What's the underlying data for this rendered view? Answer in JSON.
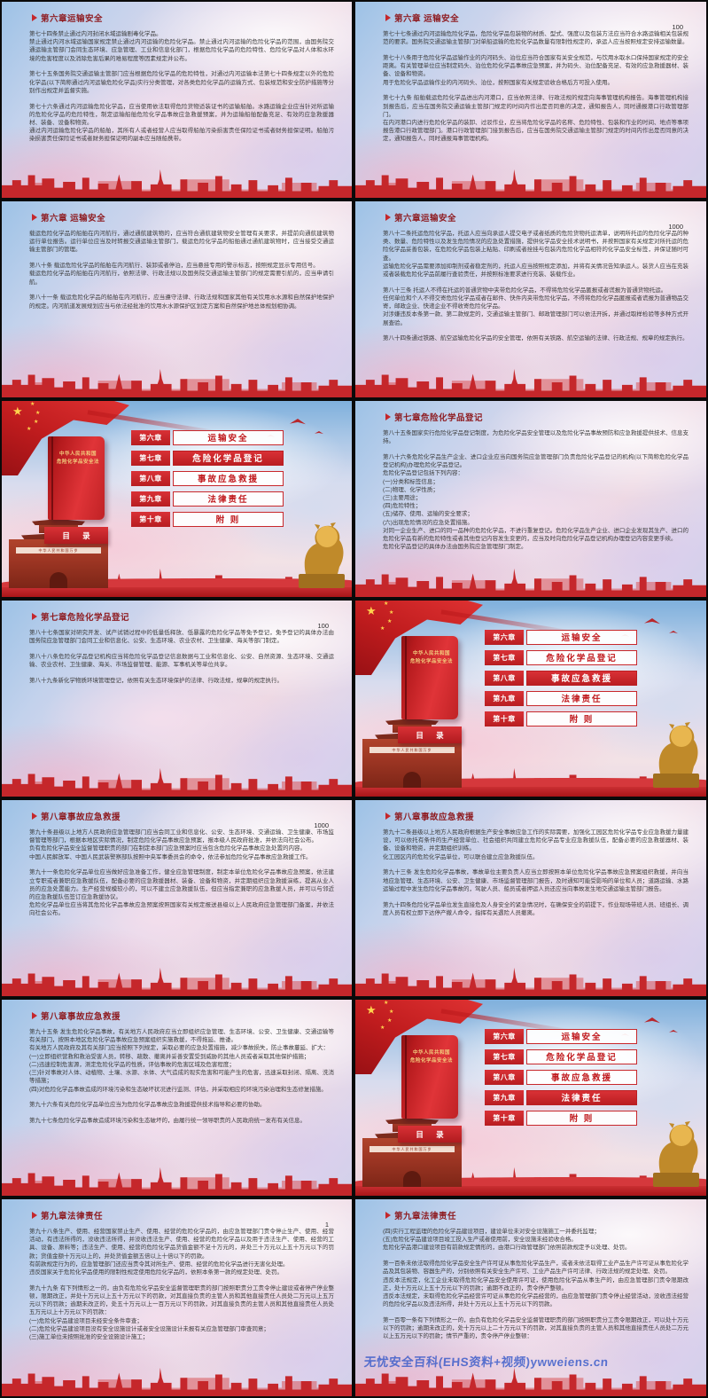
{
  "colors": {
    "accent_red": "#c5272b",
    "title_red": "#8e1a1f",
    "toc_red": "#d02a2e",
    "gold": "#f3cf7e",
    "watermark_blue": "#2f55c8"
  },
  "toc": {
    "book_title_lines": [
      "中华人民共和国",
      "危险化学品安全法"
    ],
    "contents_label": "目 录",
    "plaque_text": "中华人民共和国万岁",
    "rows": [
      {
        "chapter": "第六章",
        "title": "运输安全"
      },
      {
        "chapter": "第七章",
        "title": "危险化学品登记"
      },
      {
        "chapter": "第八章",
        "title": "事故应急救援"
      },
      {
        "chapter": "第九章",
        "title": "法律责任"
      },
      {
        "chapter": "第十章",
        "title": "附  则"
      }
    ]
  },
  "slides": [
    {
      "type": "content",
      "title": "第六章运输安全",
      "blocks": [
        [
          "第七十四条禁止通过内河封闭水域运输剧毒化学品。",
          "禁止通过内河水域运输国家规定禁止通过内河运输的危险化学品。禁止通过内河运输的危险化学品的范围，由国务院交通运输主管部门会同生态环境、应急管理、工业和信息化部门，根据危险化学品的危险特性、危险化学品对人体和水环境的危害程度以及消除危害后果的难易程度等因素规定并公布。"
        ],
        [
          "第七十五条国务院交通运输主管部门应当根据危险化学品的危险特性，对通过内河运输本法第七十四条规定以外的危险化学品(以下简称通过内河运输危险化学品)实行分类管理，对各类危险化学品的运输方式、包装规范和安全防护措施等分别作出规定并监督实施。"
        ],
        [
          "第七十六条通过内河运输危险化学品，应当使用依法取得危险货物适装证书的运输船舶。水路运输企业应当针对所运输的危险化学品的危险特性，制定运输船舶危险化学品事故应急救援预案，并为运输船舶配备充足、有效的应急救援器材、装备、设备和物资。",
          "通过内河运输危险化学品的船舶，其所有人或者经营人应当取得船舶污染损害责任保险证书或者财务担保证明。船舶污染损害责任保险证书或者财务担保证明的副本应当随船携带。"
        ]
      ]
    },
    {
      "type": "content",
      "title": "第六章 运输安全",
      "corner": "100",
      "blocks": [
        [
          "第七十七条通过内河运输危险化学品，危险化学品包装物的材质、型式、强度以及包装方法应当符合水路运输相关包装规范的要求。国务院交通运输主管部门对单船运输的危险化学品数量有限制性规定的，承运人应当按照规定安排运输数量。"
        ],
        [
          "第七十八条用于危险化学品运输作业的内河码头、泊位应当符合国家有关安全规范，与饮用水取水口保持国家规定的安全距离。有关管理单位应当制定码头、泊位危险化学品事故应急预案，并为码头、泊位配备充足、有效的应急救援器材、装备、设备和物资。",
          "用于危险化学品运输作业的内河码头、泊位，按照国家有关规定验收合格后方可投入使用。"
        ],
        [
          "第七十九条 船舶载运危险化学品进出内河港口，应当依照法律、行政法规的规定向海事管理机构报告。海事管理机构接到报告后，应当在国务院交通运输主管部门规定的时间内作出是否同意的决定，通知报告人，同时通报港口行政管理部门。",
          "在内河港口内进行危险化学品的装卸、过驳作业，应当将危险化学品的名称、危险特性、包装和作业的时间、地点等事项报告港口行政管理部门。港口行政管理部门接到报告后，应当在国务院交通运输主管部门规定的时间内作出是否同意的决定，通知报告人，同时通报海事管理机构。"
        ]
      ]
    },
    {
      "type": "content",
      "title": "第六章 运输安全",
      "blocks": [
        [
          "载运危险化学品的船舶在内河航行，通过通航建筑物的，应当符合通航建筑物安全管理有关要求，并提前向通航建筑物运行单位报告。运行单位应当及时转报交通运输主管部门，载运危险化学品的船舶通过通航建筑物时，应当接受交通运输主管部门的管理。"
        ],
        [
          "第八十条 载运危险化学品的船舶在内河航行、装卸或者停泊，应当悬挂专用的警示标志，按照规定显示专用信号。",
          "载运危险化学品的船舶在内河航行，依照法律、行政法规以及国务院交通运输主管部门的规定需要引航的，应当申请引航。"
        ],
        [
          "第八十一条 载运危险化学品的船舶在内河航行，应当遵守法律、行政法规和国家其他有关饮用水水源和自然保护地保护的规定。内河航道发展规划应当与依法经批准的饮用水水源保护区划定方案和自然保护地总体规划相协调。"
        ]
      ]
    },
    {
      "type": "content",
      "title": "第六章运输安全",
      "corner": "1000",
      "blocks": [
        [
          "第八十二条托运危险化学品，托运人应当向承运人提交电子或者纸质的危险货物托运清单，说明所托运的危险化学品的种类、数量、危险特性以及发生危险情况的应急处置措施，提供化学品安全技术说明书，并按照国家有关规定对所托运的危险化学品妥善包装，在危险化学品包装上粘贴、印刷或者拴挂与包装内危险化学品相符的化学品安全标签，并保证随时可查。",
          "运输危险化学品需要添加抑制剂或者稳定剂的，托运人应当按照规定添加，并将有关情况告知承运人。装货人应当在充装或者装载危险化学品前履行查验责任，并按照标准要求进行充装、装载作业。"
        ],
        [
          "第八十三条 托运人不得在托运的普通货物中夹带危险化学品，不得将危险化学品匿报或者谎报为普通货物托运。",
          "任何单位和个人不得交寄危险化学品或者在邮件、快件内夹带危险化学品，不得将危险化学品匿报或者谎报为普通物品交寄，邮政企业、快递企业不得收寄危险化学品。",
          "对涉嫌违反本条第一款、第二款规定的，交通运输主管部门、邮政管理部门可以依法开拆，并通过取样检验等多种方式开展查验。"
        ],
        [
          "第八十四条通过铁路、航空运输危险化学品的安全管理，依照有关铁路、航空运输的法律、行政法规、规章的规定执行。"
        ]
      ]
    },
    {
      "type": "toc",
      "highlighted": 1
    },
    {
      "type": "content",
      "title": "第七章危险化学品登记",
      "blocks": [
        [
          "第八十五条国家实行危险化学品登记制度，为危险化学品安全管理以及危险化学品事故预防和应急救援提供技术、信息支持。"
        ],
        [
          "第八十六条危险化学品生产企业、进口企业应当向国务院应急管理部门负责危险化学品登记的机构(以下简称危险化学品登记机构)办理危险化学品登记。",
          "危险化学品登记包括下列内容：",
          "(一)分类和标签信息；",
          "(二)物理、化学性质；",
          "(三)主要用途；",
          "(四)危险特性；",
          "(五)储存、使用、运输的安全要求；",
          "(六)出现危险情况的应急处置措施。",
          "对同一企业生产、进口的同一品种的危险化学品，不进行重复登记。危险化学品生产企业、进口企业发现其生产、进口的危险化学品有新的危险特性或者其他登记内容发生变更的，应当及时向危险化学品登记机构办理登记内容变更手续。",
          "危险化学品登记的具体办法由国务院应急管理部门制定。"
        ]
      ]
    },
    {
      "type": "content",
      "title": "第七章危险化学品登记",
      "corner": "100",
      "blocks": [
        [
          "第八十七条国家对研究开发、试产试销过程中的低量低释放、低暴露的危险化学品等免予登记，免予登记的具体办法由国务院应急管理部门会同工业和信息化、公安、生态环境、农业农村、卫生健康、海关等部门制定。"
        ],
        [
          "第八十八条危险化学品登记机构应当将危险化学品登记信息数据与工业和信息化、公安、自然资源、生态环境、交通运输、农业农村、卫生健康、海关、市场监督管理、能源、军事机关等单位共享。"
        ],
        [
          "第八十九条新化学物质环境管理登记，依照有关生态环境保护的法律、行政法规，规章的规定执行。"
        ]
      ]
    },
    {
      "type": "toc",
      "highlighted": 2
    },
    {
      "type": "content",
      "title": "第八章事故应急救援",
      "corner": "1000",
      "blocks": [
        [
          "第九十条县级以上地方人民政府应急管理部门应当会同工业和信息化、公安、生态环境、交通运输、卫生健康、市场监督管理等部门，根据本地区实际情况，制定危险化学品事故应急预案，报本级人民政府批准，并依法向社会公布。",
          "负有危险化学品安全监督管理职责的部门在制定本部门应急预案时应当包含危险化学品事故应急处置的内容。",
          "中国人民解放军、中国人民武装警察部队按照中央军事委员会的命令，依法参加危险化学品事故应急救援工作。"
        ],
        [
          "第九十一条危险化学品单位应当做好应急准备工作，健全应急管理制度，制定本单位危险化学品事故应急预案，依法建立专职或者兼职应急救援队伍，配备必要的应急救援器材、装备、设备和物资，并定期组织应急救援演练，提高从业人员的应急处置能力。生产经营规模较小的，可以不建立应急救援队伍，但应当指定兼职的应急救援人员，并可以与邻近的应急救援队伍签订应急救援协议。",
          "危险化学品单位应当将其危险化学品事故应急预案按照国家有关规定报送县级以上人民政府应急管理部门备案，并依法向社会公布。"
        ]
      ]
    },
    {
      "type": "content",
      "title": "第八章事故应急救援",
      "blocks": [
        [
          "第九十二条县级以上地方人民政府根据生产安全事故应急工作的实际需要，加强化工园区危险化学品专业应急救援力量建设，可以依托有条件的生产经营单位、社会组织共同建立危险化学品专业应急救援队伍，配备必要的应急救援器材、装备、设备和物资，并定期组织训练。",
          "化工园区内的危险化学品单位，可以联合建立应急救援队伍。"
        ],
        [
          "第九十三条 发生危险化学品事故，事故单位主要负责人应当立即按照本单位危险化学品事故应急预案组织救援，并向当地应急管理、生态环境、公安、卫生健康、市场监督管理部门报告，及时通知可能受影响的单位和人员；道路运输、水路运输过程中发生危险化学品事故的，驾驶人员、船员或者押运人员还应当向事故发生地交通运输主管部门报告。"
        ],
        [
          "第九十四条危险化学品单位发生直接危及人身安全的紧急情况时，在确保安全的前提下，作业现场带班人员、班组长、调度人员有权立即下达停产撤人命令，指挥有关遇险人员撤离。"
        ]
      ]
    },
    {
      "type": "content",
      "title": "第八章事故应急救援",
      "blocks": [
        [
          "第九十五条 发生危险化学品事故，有关地方人民政府应当立即组织应急管理、生态环境、公安、卫生健康、交通运输等有关部门，按照本地区危险化学品事故应急预案组织实施救援，不得拖延、推诿。",
          "有关地方人民政府及其有关部门应当按照下列规定，采取必要的应急处置措施，减少事故损失，防止事故蔓延、扩大：",
          "(一)立即组织营救和救治受害人员，转移、疏散、撤离并妥善安置受到威胁的其他人员或者采取其他保护措施；",
          "(二)迅速控制危害源，测定危险化学品的性质，评估事故的危害区域及危害程度；",
          "(三)针对事故对人体、动植物、土壤、水源、水体、大气造成的现实危害和可能产生的危害，迅速采取封闭、隔离、洗消等措施；",
          "(四)对危险化学品事故造成的环境污染和生态破坏状况进行监测、评估，并采取相应的环境污染治理和生态修复措施。"
        ],
        [
          "第九十六条有关危险化学品单位应当为危险化学品事故应急救援提供技术指导和必要的协助。"
        ],
        [
          "第九十七条危险化学品事故造成环境污染和生态破坏的，由履行统一领导职责的人民政府统一发布有关信息。"
        ]
      ]
    },
    {
      "type": "toc",
      "highlighted": 3
    },
    {
      "type": "content",
      "title": "第九章法律责任",
      "corner": "1",
      "blocks": [
        [
          "第九十八条生产、使用、经营国家禁止生产、使用、经营的危险化学品的，由应急管理部门责令停止生产、使用、经营活动，有违法所得的，没收违法所得，并没收违法生产、使用、经营的危险化学品以及用于违法生产、使用、经营的工具、设备、原料等；违法生产、使用、经营的危险化学品货值金额不足十万元的，并处三十万元以上五十万元以下的罚款；货值金额十万元以上的，并处货值金额五倍以上十倍以下的罚款。",
          "有前款规定行为的，应急管理部门还应当责令其对所生产、使用、经营的危险化学品进行无害化处理。",
          "违反国家关于危险化学品使用的限制性规定使用危险化学品的，依照本条第一款的规定处理、处罚。"
        ],
        [
          "第九十九条 有下列情形之一的，由负有危险化学品安全监督管理职责的部门按照职责分工责令停止建设或者停产停业整顿，限期改正，并处十万元以上五十万元以下的罚款，对其直接负责的主管人员和其他直接责任人员处二万元以上五万元以下的罚款；逾期未改正的，处五十万元以上一百万元以下的罚款，对其直接负责的主管人员和其他直接责任人员处五万元以上十万元以下的罚款：",
          "(一)危险化学品建设项目未经安全条件审查；",
          "(二)危险化学品建设项目没有安全设施设计或者安全设施设计未报有关应急管理部门审查同意；",
          "(三)施工单位未按照批准的安全设施设计施工；"
        ]
      ]
    },
    {
      "type": "content",
      "title": "第九章法律责任",
      "watermark": "无忧安全百科(EHS资料+视频)ywweiens.cn",
      "blocks": [
        [
          "(四)实行工程监理的危险化学品建设项目，建设单位未对安全设施施工一并委托监理；",
          "(五)危险化学品建设项目竣工投入生产或者使用前，安全设施未经验收合格。",
          "危险化学品港口建设项目有前款规定情形的，由港口行政管理部门依照前款规定予以处理、处罚。"
        ],
        [
          "第一百条未依法取得危险化学品安全生产许可证从事危险化学品生产，或者未依法取得工业产品生产许可证从事危险化学品及其包装物、容器生产的，分别依照有关安全生产许可、工业产品生产许可法律、行政法规的规定处理、处罚。",
          "违反本法规定，化工企业未取得危险化学品安全使用许可证，使用危险化学品从事生产的，由应急管理部门责令限期改正，处十万元以上五十万元以下的罚款；逾期不改正的，责令停产整顿。",
          "违反本法规定，未取得危险化学品经营许可证从事危险化学品经营的，由应急管理部门责令停止经营活动，没收违法经营的危险化学品以及违法所得，并处十万元以上五十万元以下的罚款。"
        ],
        [
          "第一百零一条有下列情形之一的，由负有危险化学品安全监督管理职责的部门按照职责分工责令限期改正，可以处十万元以下的罚款；逾期未改正的，处十万元以上二十万元以下的罚款，对其直接负责的主管人员和其他直接责任人员处二万元以上五万元以下的罚款；情节严重的，责令停产停业整顿："
        ]
      ]
    }
  ]
}
